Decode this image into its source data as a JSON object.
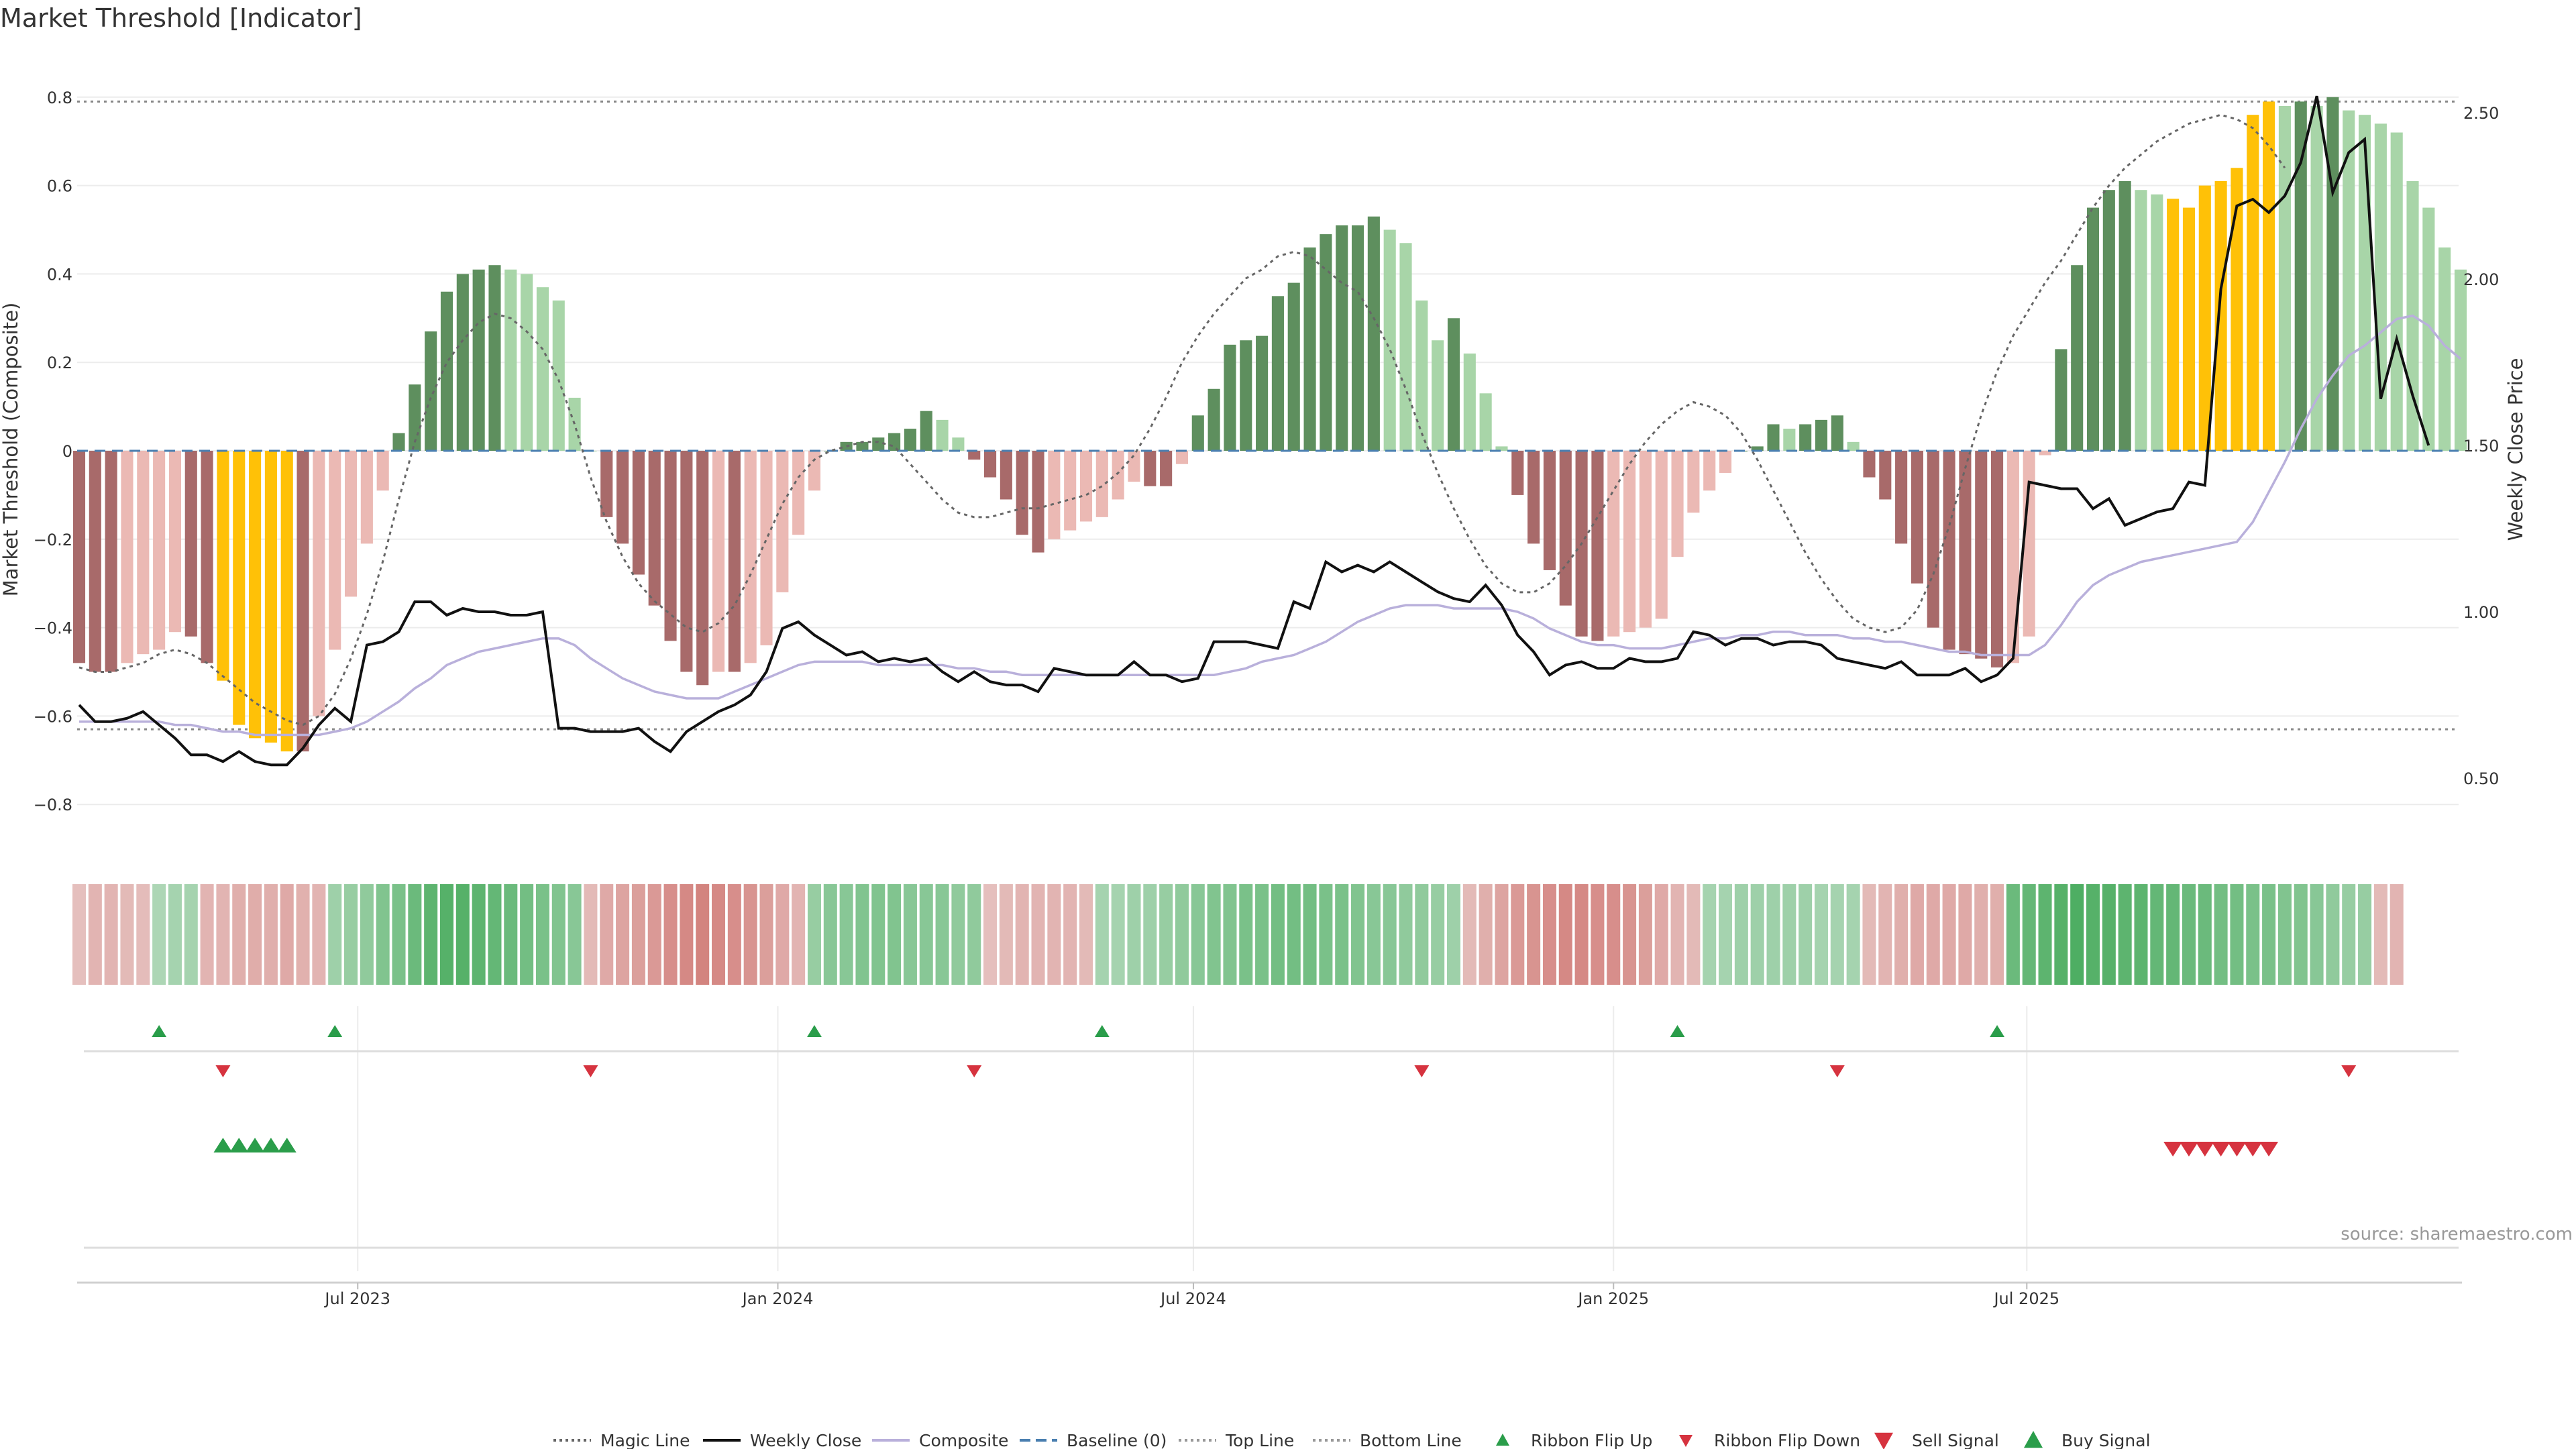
{
  "chart_data": {
    "type": "bar",
    "title": "Market Threshold [Indicator]",
    "ylabel_left": "Market Threshold (Composite)",
    "ylabel_right": "Weekly Close Price",
    "left_axis": {
      "range": [
        -0.9,
        0.9
      ],
      "ticks": [
        -0.8,
        -0.6,
        -0.4,
        -0.2,
        0,
        0.2,
        0.4,
        0.6,
        0.8
      ],
      "tick_labels": [
        "−0.8",
        "−0.6",
        "−0.4",
        "−0.2",
        "0",
        "0.2",
        "0.4",
        "0.6",
        "0.8"
      ]
    },
    "right_axis": {
      "range": [
        0.3,
        2.58
      ],
      "ticks": [
        0.5,
        1.0,
        1.5,
        2.0,
        2.5
      ],
      "tick_labels": [
        "0.50",
        "1.00",
        "1.50",
        "2.00",
        "2.50"
      ]
    },
    "x_axis": {
      "start_date": "2023-03-01",
      "tick_dates": [
        "2023-07-01",
        "2024-01-01",
        "2024-07-01",
        "2025-01-01",
        "2025-07-01"
      ],
      "tick_labels": [
        "Jul 2023",
        "Jan 2024",
        "Jul 2024",
        "Jan 2025",
        "Jul 2025"
      ]
    },
    "reference_lines": {
      "baseline": 0,
      "top_line": 0.79,
      "bottom_line": -0.63
    },
    "colors": {
      "bar_pos_strong": "#5e8f5e",
      "bar_pos_weak": "#a8d5a8",
      "bar_neg_strong": "#a86a6a",
      "bar_neg_weak": "#ebb9b4",
      "bar_extreme": "#ffc107",
      "weekly_close": "#111111",
      "composite": "#b9b0db",
      "magic_line": "#666666",
      "baseline": "#4a7fb0",
      "buy": "#2a9d4a",
      "sell": "#d6333f"
    },
    "composite_bars": [
      -0.48,
      -0.5,
      -0.5,
      -0.48,
      -0.46,
      -0.45,
      -0.41,
      -0.42,
      -0.48,
      -0.52,
      -0.62,
      -0.65,
      -0.66,
      -0.68,
      -0.68,
      -0.6,
      -0.45,
      -0.33,
      -0.21,
      -0.09,
      0.04,
      0.15,
      0.27,
      0.36,
      0.4,
      0.41,
      0.42,
      0.41,
      0.4,
      0.37,
      0.34,
      0.12,
      0,
      -0.15,
      -0.21,
      -0.28,
      -0.35,
      -0.43,
      -0.5,
      -0.53,
      -0.5,
      -0.5,
      -0.48,
      -0.44,
      -0.32,
      -0.19,
      -0.09,
      0,
      0.02,
      0.02,
      0.03,
      0.04,
      0.05,
      0.09,
      0.07,
      0.03,
      -0.02,
      -0.06,
      -0.11,
      -0.19,
      -0.23,
      -0.2,
      -0.18,
      -0.16,
      -0.15,
      -0.11,
      -0.07,
      -0.08,
      -0.08,
      -0.03,
      0.08,
      0.14,
      0.24,
      0.25,
      0.26,
      0.35,
      0.38,
      0.46,
      0.49,
      0.51,
      0.51,
      0.53,
      0.5,
      0.47,
      0.34,
      0.25,
      0.3,
      0.22,
      0.13,
      0.01,
      -0.1,
      -0.21,
      -0.27,
      -0.35,
      -0.42,
      -0.43,
      -0.42,
      -0.41,
      -0.4,
      -0.38,
      -0.24,
      -0.14,
      -0.09,
      -0.05,
      0,
      0.01,
      0.06,
      0.05,
      0.06,
      0.07,
      0.08,
      0.02,
      -0.06,
      -0.11,
      -0.21,
      -0.3,
      -0.4,
      -0.45,
      -0.46,
      -0.47,
      -0.49,
      -0.48,
      -0.42,
      -0.01,
      0.23,
      0.42,
      0.55,
      0.59,
      0.61,
      0.59,
      0.58,
      0.57,
      0.55,
      0.6,
      0.61,
      0.64,
      0.76,
      0.79,
      0.78,
      0.79,
      0.78,
      0.8,
      0.77,
      0.76,
      0.74,
      0.72,
      0.61,
      0.55,
      0.46,
      0.41
    ],
    "weekly_close": [
      0.72,
      0.67,
      0.67,
      0.68,
      0.7,
      0.66,
      0.62,
      0.57,
      0.57,
      0.55,
      0.58,
      0.55,
      0.54,
      0.54,
      0.59,
      0.66,
      0.71,
      0.67,
      0.9,
      0.91,
      0.94,
      1.03,
      1.03,
      0.99,
      1.01,
      1.0,
      1.0,
      0.99,
      0.99,
      1.0,
      0.65,
      0.65,
      0.64,
      0.64,
      0.64,
      0.65,
      0.61,
      0.58,
      0.64,
      0.67,
      0.7,
      0.72,
      0.75,
      0.82,
      0.95,
      0.97,
      0.93,
      0.9,
      0.87,
      0.88,
      0.85,
      0.86,
      0.85,
      0.86,
      0.82,
      0.79,
      0.82,
      0.79,
      0.78,
      0.78,
      0.76,
      0.83,
      0.82,
      0.81,
      0.81,
      0.81,
      0.85,
      0.81,
      0.81,
      0.79,
      0.8,
      0.91,
      0.91,
      0.91,
      0.9,
      0.89,
      1.03,
      1.01,
      1.15,
      1.12,
      1.14,
      1.12,
      1.15,
      1.12,
      1.09,
      1.06,
      1.04,
      1.03,
      1.08,
      1.02,
      0.93,
      0.88,
      0.81,
      0.84,
      0.85,
      0.83,
      0.83,
      0.86,
      0.85,
      0.85,
      0.86,
      0.94,
      0.93,
      0.9,
      0.92,
      0.92,
      0.9,
      0.91,
      0.91,
      0.9,
      0.86,
      0.85,
      0.84,
      0.83,
      0.85,
      0.81,
      0.81,
      0.81,
      0.83,
      0.79,
      0.81,
      0.86,
      1.39,
      1.38,
      1.37,
      1.37,
      1.31,
      1.34,
      1.26,
      1.28,
      1.3,
      1.31,
      1.39,
      1.38,
      1.97,
      2.22,
      2.24,
      2.2,
      2.25,
      2.35,
      2.55,
      2.26,
      2.38,
      2.42,
      1.64,
      1.82,
      1.65,
      1.5
    ],
    "composite_line": [
      0.67,
      0.67,
      0.67,
      0.67,
      0.67,
      0.67,
      0.66,
      0.66,
      0.65,
      0.64,
      0.64,
      0.63,
      0.63,
      0.63,
      0.63,
      0.63,
      0.64,
      0.65,
      0.67,
      0.7,
      0.73,
      0.77,
      0.8,
      0.84,
      0.86,
      0.88,
      0.89,
      0.9,
      0.91,
      0.92,
      0.92,
      0.9,
      0.86,
      0.83,
      0.8,
      0.78,
      0.76,
      0.75,
      0.74,
      0.74,
      0.74,
      0.76,
      0.78,
      0.8,
      0.82,
      0.84,
      0.85,
      0.85,
      0.85,
      0.85,
      0.84,
      0.84,
      0.84,
      0.84,
      0.84,
      0.83,
      0.83,
      0.82,
      0.82,
      0.81,
      0.81,
      0.81,
      0.81,
      0.81,
      0.81,
      0.81,
      0.81,
      0.81,
      0.81,
      0.81,
      0.81,
      0.81,
      0.82,
      0.83,
      0.85,
      0.86,
      0.87,
      0.89,
      0.91,
      0.94,
      0.97,
      0.99,
      1.01,
      1.02,
      1.02,
      1.02,
      1.01,
      1.01,
      1.01,
      1.01,
      1.0,
      0.98,
      0.95,
      0.93,
      0.91,
      0.9,
      0.9,
      0.89,
      0.89,
      0.89,
      0.9,
      0.91,
      0.92,
      0.92,
      0.93,
      0.93,
      0.94,
      0.94,
      0.93,
      0.93,
      0.93,
      0.92,
      0.92,
      0.91,
      0.91,
      0.9,
      0.89,
      0.88,
      0.88,
      0.87,
      0.87,
      0.87,
      0.87,
      0.9,
      0.96,
      1.03,
      1.08,
      1.11,
      1.13,
      1.15,
      1.16,
      1.17,
      1.18,
      1.19,
      1.2,
      1.21,
      1.27,
      1.36,
      1.45,
      1.55,
      1.64,
      1.71,
      1.77,
      1.8,
      1.84,
      1.88,
      1.89,
      1.86,
      1.8,
      1.76
    ],
    "magic_line": [
      -0.49,
      -0.5,
      -0.5,
      -0.49,
      -0.48,
      -0.46,
      -0.45,
      -0.46,
      -0.48,
      -0.51,
      -0.54,
      -0.57,
      -0.59,
      -0.61,
      -0.62,
      -0.6,
      -0.55,
      -0.47,
      -0.37,
      -0.25,
      -0.11,
      0.02,
      0.12,
      0.2,
      0.25,
      0.29,
      0.31,
      0.3,
      0.27,
      0.23,
      0.16,
      0.06,
      -0.06,
      -0.16,
      -0.24,
      -0.3,
      -0.34,
      -0.37,
      -0.4,
      -0.41,
      -0.39,
      -0.35,
      -0.28,
      -0.2,
      -0.12,
      -0.06,
      -0.02,
      0.0,
      0.01,
      0.02,
      0.02,
      0.01,
      -0.03,
      -0.07,
      -0.11,
      -0.14,
      -0.15,
      -0.15,
      -0.14,
      -0.13,
      -0.13,
      -0.12,
      -0.11,
      -0.1,
      -0.08,
      -0.05,
      -0.01,
      0.05,
      0.12,
      0.2,
      0.26,
      0.31,
      0.35,
      0.39,
      0.41,
      0.44,
      0.45,
      0.44,
      0.41,
      0.38,
      0.36,
      0.3,
      0.23,
      0.14,
      0.04,
      -0.05,
      -0.13,
      -0.2,
      -0.26,
      -0.3,
      -0.32,
      -0.32,
      -0.3,
      -0.26,
      -0.21,
      -0.15,
      -0.09,
      -0.03,
      0.02,
      0.06,
      0.09,
      0.11,
      0.1,
      0.08,
      0.04,
      -0.02,
      -0.09,
      -0.16,
      -0.23,
      -0.29,
      -0.34,
      -0.38,
      -0.4,
      -0.41,
      -0.4,
      -0.36,
      -0.28,
      -0.17,
      -0.04,
      0.08,
      0.18,
      0.26,
      0.32,
      0.38,
      0.43,
      0.49,
      0.55,
      0.6,
      0.64,
      0.67,
      0.7,
      0.72,
      0.74,
      0.75,
      0.76,
      0.75,
      0.73,
      0.69,
      0.64
    ],
    "ribbon_values": [
      -0.25,
      -0.35,
      -0.35,
      -0.3,
      -0.28,
      0.25,
      0.3,
      0.3,
      -0.35,
      -0.35,
      -0.4,
      -0.42,
      -0.4,
      -0.45,
      -0.38,
      -0.35,
      0.35,
      0.4,
      0.45,
      0.55,
      0.6,
      0.7,
      0.8,
      0.85,
      0.85,
      0.8,
      0.75,
      0.7,
      0.65,
      0.6,
      0.55,
      0.5,
      -0.3,
      -0.45,
      -0.5,
      -0.55,
      -0.6,
      -0.7,
      -0.75,
      -0.8,
      -0.75,
      -0.7,
      -0.65,
      -0.55,
      -0.45,
      -0.35,
      0.4,
      0.5,
      0.5,
      0.55,
      0.55,
      0.55,
      0.5,
      0.5,
      0.5,
      0.45,
      0.45,
      -0.25,
      -0.3,
      -0.35,
      -0.35,
      -0.35,
      -0.35,
      -0.3,
      0.3,
      0.3,
      0.35,
      0.35,
      0.4,
      0.45,
      0.5,
      0.55,
      0.55,
      0.6,
      0.6,
      0.65,
      0.65,
      0.65,
      0.6,
      0.6,
      0.55,
      0.5,
      0.5,
      0.45,
      0.45,
      0.4,
      0.35,
      -0.3,
      -0.4,
      -0.5,
      -0.6,
      -0.65,
      -0.7,
      -0.75,
      -0.75,
      -0.7,
      -0.7,
      -0.65,
      -0.55,
      -0.45,
      -0.35,
      -0.3,
      0.3,
      0.3,
      0.35,
      0.35,
      0.35,
      0.35,
      0.35,
      0.3,
      0.3,
      0.3,
      -0.3,
      -0.35,
      -0.4,
      -0.45,
      -0.45,
      -0.45,
      -0.45,
      -0.4,
      -0.4,
      0.7,
      0.75,
      0.8,
      0.85,
      0.9,
      0.85,
      0.85,
      0.8,
      0.8,
      0.75,
      0.75,
      0.7,
      0.7,
      0.65,
      0.65,
      0.6,
      0.6,
      0.55,
      0.55,
      0.5,
      0.45,
      0.4,
      0.4,
      -0.3,
      -0.35
    ],
    "ribbon_flip_up_weeks": [
      5,
      16,
      46,
      64,
      100,
      120
    ],
    "ribbon_flip_down_weeks": [
      9,
      32,
      56,
      84,
      110,
      142
    ],
    "buy_signal_weeks": [
      9,
      10,
      11,
      12,
      13
    ],
    "sell_signal_weeks": [
      131,
      132,
      133,
      134,
      135,
      136,
      137
    ],
    "extreme_bar_weeks": [
      9,
      10,
      11,
      12,
      13,
      131,
      132,
      133,
      134,
      135,
      136,
      137
    ],
    "legend": [
      "Magic Line",
      "Weekly Close",
      "Composite",
      "Baseline (0)",
      "Top Line",
      "Bottom Line",
      "Ribbon Flip Up",
      "Ribbon Flip Down",
      "Sell Signal",
      "Buy Signal"
    ],
    "legend_placement": "bottom",
    "source": "source: sharemaestro.com"
  }
}
